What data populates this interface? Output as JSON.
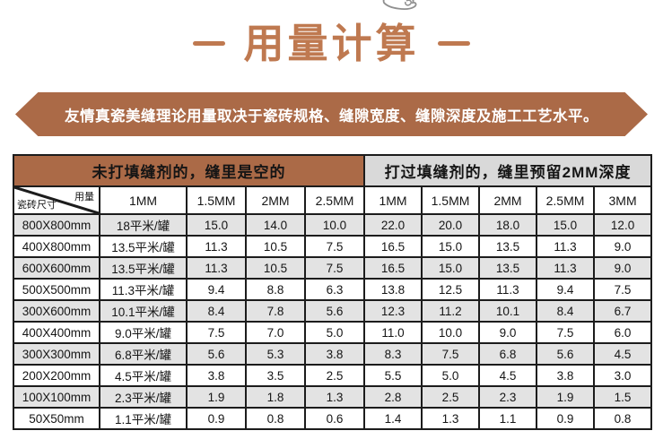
{
  "page": {
    "title": "用量计算",
    "title_dash_left": "",
    "title_dash_right": ""
  },
  "icons": {
    "top_doodle": "hand-doodle-icon"
  },
  "banner": {
    "text": "友情真瓷美缝理论用量取决于瓷砖规格、缝隙宽度、缝隙深度及施工工艺水平。"
  },
  "table": {
    "group_headers": {
      "left": "未打填缝剂的，缝里是空的",
      "right": "打过填缝剂的，缝里预留2MM深度"
    },
    "corner": {
      "top_right": "用量",
      "bottom_left": "瓷砖尺寸"
    },
    "column_headers": [
      "1MM",
      "1.5MM",
      "2MM",
      "2.5MM",
      "1MM",
      "1.5MM",
      "2MM",
      "2.5MM",
      "3MM"
    ],
    "rows": [
      {
        "size": "800X800mm",
        "cells": [
          "18平米/罐",
          "15.0",
          "14.0",
          "10.0",
          "22.0",
          "20.0",
          "18.0",
          "15.0",
          "12.0"
        ]
      },
      {
        "size": "400X800mm",
        "cells": [
          "13.5平米/罐",
          "11.3",
          "10.5",
          "7.5",
          "16.5",
          "15.0",
          "13.5",
          "11.3",
          "9.0"
        ]
      },
      {
        "size": "600X600mm",
        "cells": [
          "13.5平米/罐",
          "11.3",
          "10.5",
          "7.5",
          "16.5",
          "15.0",
          "13.5",
          "11.3",
          "9.0"
        ]
      },
      {
        "size": "500X500mm",
        "cells": [
          "11.3平米/罐",
          "9.4",
          "8.8",
          "6.3",
          "13.8",
          "12.5",
          "11.3",
          "9.4",
          "7.5"
        ]
      },
      {
        "size": "300X600mm",
        "cells": [
          "10.1平米/罐",
          "8.4",
          "7.8",
          "5.6",
          "12.3",
          "11.2",
          "10.1",
          "8.4",
          "6.7"
        ]
      },
      {
        "size": "400X400mm",
        "cells": [
          "9.0平米/罐",
          "7.5",
          "7.0",
          "5.0",
          "11.0",
          "10.0",
          "9.0",
          "7.5",
          "6.0"
        ]
      },
      {
        "size": "300X300mm",
        "cells": [
          "6.8平米/罐",
          "5.6",
          "5.3",
          "3.8",
          "8.3",
          "7.5",
          "6.8",
          "5.6",
          "4.5"
        ]
      },
      {
        "size": "200X200mm",
        "cells": [
          "4.5平米/罐",
          "3.8",
          "3.5",
          "2.5",
          "5.5",
          "5.0",
          "4.5",
          "3.8",
          "3.0"
        ]
      },
      {
        "size": "100X100mm",
        "cells": [
          "2.3平米/罐",
          "1.9",
          "1.8",
          "1.3",
          "2.8",
          "2.5",
          "2.3",
          "1.9",
          "1.5"
        ]
      },
      {
        "size": "50X50mm",
        "cells": [
          "1.1平米/罐",
          "0.9",
          "0.8",
          "0.6",
          "1.4",
          "1.3",
          "1.1",
          "0.9",
          "0.8"
        ]
      }
    ]
  },
  "colors": {
    "accent_terracotta": "#ab6a47",
    "title_text": "#bf7950",
    "header_gray": "#d9d9d9",
    "row_alt_gray": "#e3e3e3",
    "table_border": "#1c1c1c"
  }
}
